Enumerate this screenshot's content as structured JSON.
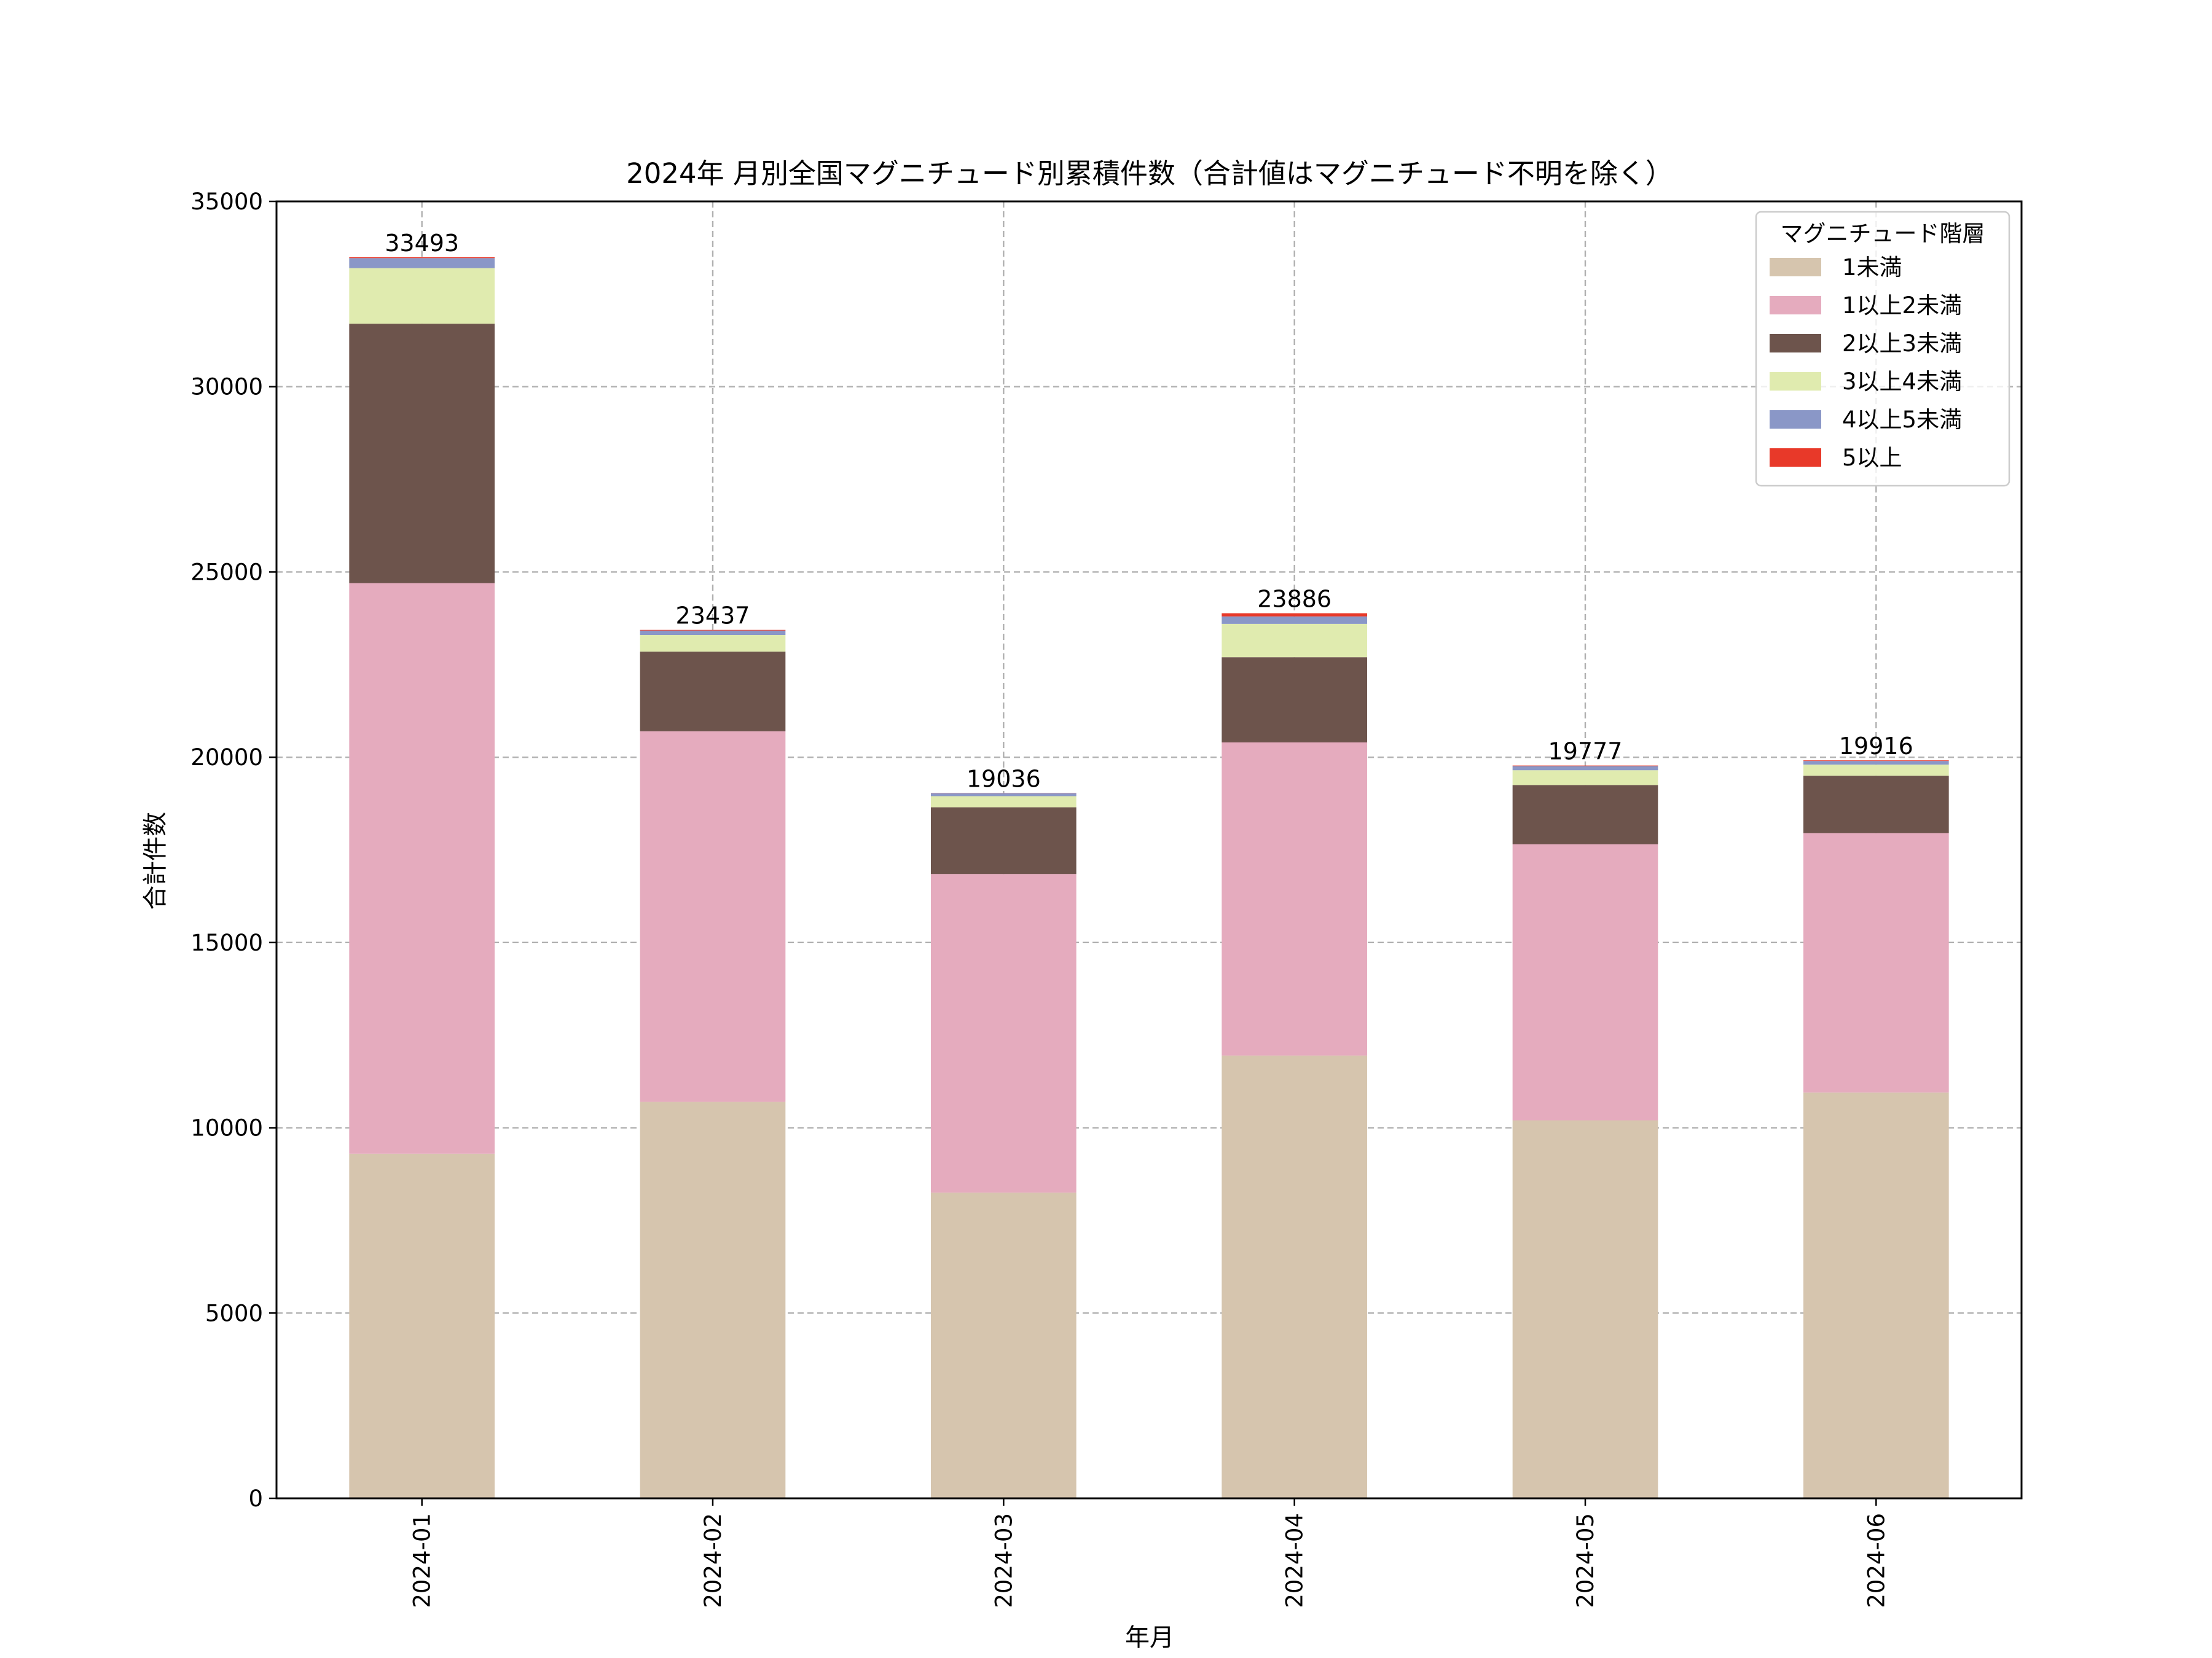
{
  "chart_data": {
    "type": "bar",
    "stacked": true,
    "title": "2024年 月別全国マグニチュード別累積件数（合計値はマグニチュード不明を除く）",
    "xlabel": "年月",
    "ylabel": "合計件数",
    "ylim": [
      0,
      35000
    ],
    "yticks": [
      0,
      5000,
      10000,
      15000,
      20000,
      25000,
      30000,
      35000
    ],
    "ytick_labels": [
      "0",
      "5000",
      "10000",
      "15000",
      "20000",
      "25000",
      "30000",
      "35000"
    ],
    "grid": true,
    "legend_position": "top-right",
    "legend_title": "マグニチュード階層",
    "categories": [
      "2024-01",
      "2024-02",
      "2024-03",
      "2024-04",
      "2024-05",
      "2024-06"
    ],
    "totals": [
      33493,
      23437,
      19036,
      23886,
      19777,
      19916
    ],
    "series": [
      {
        "name": "1未満",
        "color": "#d6c5ae",
        "values": [
          9300,
          10700,
          8250,
          11950,
          10200,
          10950
        ]
      },
      {
        "name": "1以上2未満",
        "color": "#e5abbe",
        "values": [
          15400,
          10000,
          8600,
          8450,
          7450,
          7000
        ]
      },
      {
        "name": "2以上3未満",
        "color": "#6d544c",
        "values": [
          7000,
          2150,
          1800,
          2300,
          1600,
          1550
        ]
      },
      {
        "name": "3以上4未満",
        "color": "#e0ebaf",
        "values": [
          1500,
          450,
          300,
          900,
          400,
          300
        ]
      },
      {
        "name": "4以上5未満",
        "color": "#8a97c7",
        "values": [
          270,
          120,
          80,
          200,
          110,
          100
        ]
      },
      {
        "name": "5以上",
        "color": "#e83929",
        "values": [
          23,
          17,
          6,
          86,
          17,
          16
        ]
      }
    ]
  }
}
